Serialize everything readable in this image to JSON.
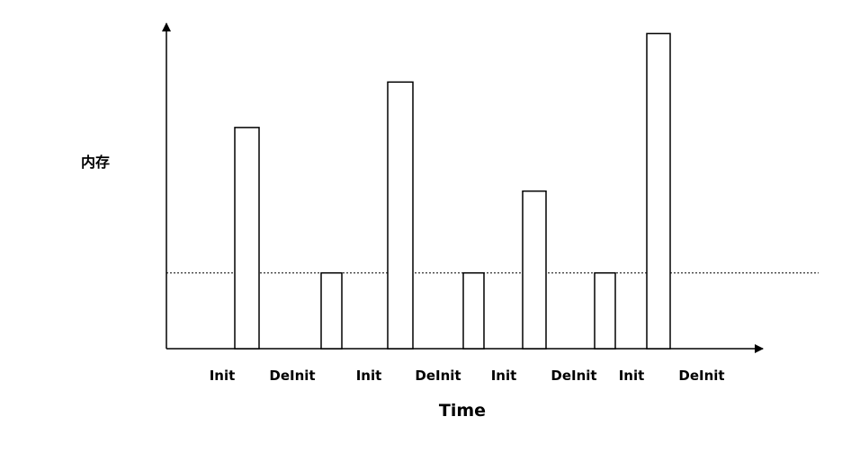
{
  "chart_data": {
    "type": "bar",
    "title": "",
    "xlabel": "Time",
    "ylabel": "内存",
    "categories": [
      "Init",
      "DeInit",
      "Init",
      "DeInit",
      "Init",
      "DeInit",
      "Init",
      "DeInit"
    ],
    "values": [
      73,
      25,
      88,
      25,
      52,
      25,
      104,
      null
    ],
    "baseline": 25,
    "baseline_style": "dotted",
    "ylim": [
      0,
      105
    ],
    "grid": false,
    "legend": "none",
    "axis_tick_labels_shown": false,
    "bar_fill": "#ffffff",
    "bar_stroke": "#000000"
  }
}
